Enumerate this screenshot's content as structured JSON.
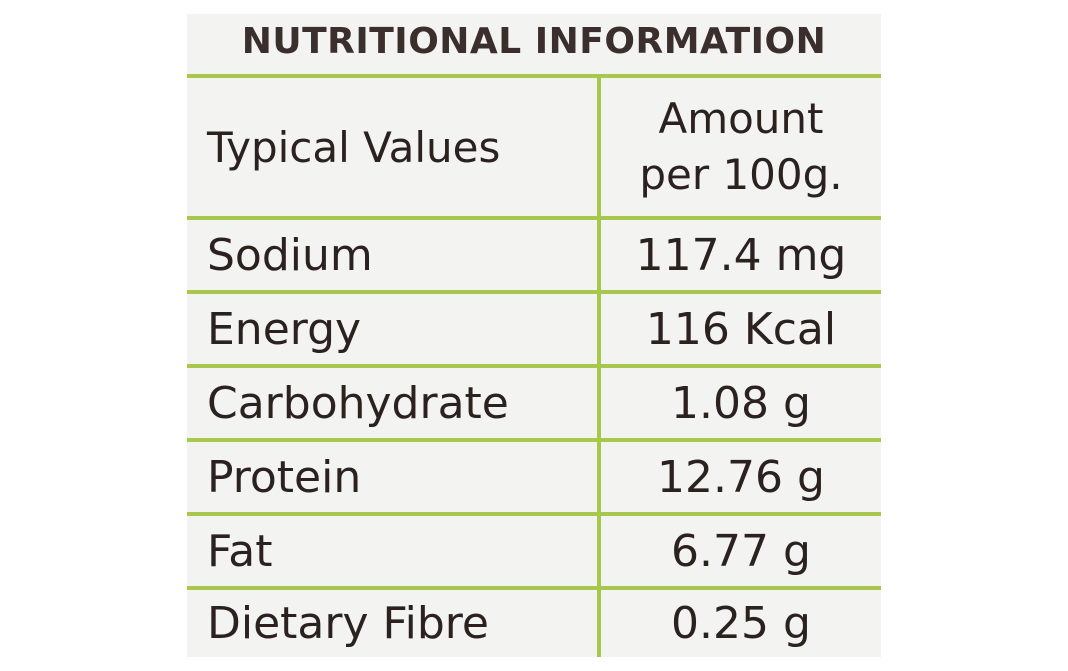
{
  "panel": {
    "title": "NUTRITIONAL INFORMATION"
  },
  "table": {
    "header": {
      "name": "Typical Values",
      "value_line1": "Amount",
      "value_line2": "per 100g."
    },
    "rows": [
      {
        "name": "Sodium",
        "value": "117.4 mg"
      },
      {
        "name": "Energy",
        "value": "116 Kcal"
      },
      {
        "name": "Carbohydrate",
        "value": "1.08 g"
      },
      {
        "name": "Protein",
        "value": "12.76 g"
      },
      {
        "name": "Fat",
        "value": "6.77 g"
      },
      {
        "name": "Dietary Fibre",
        "value": "0.25 g"
      }
    ]
  },
  "colors": {
    "rule_green": "#a7c84d",
    "text": "#2b2220",
    "background": "#f3f3f1"
  }
}
